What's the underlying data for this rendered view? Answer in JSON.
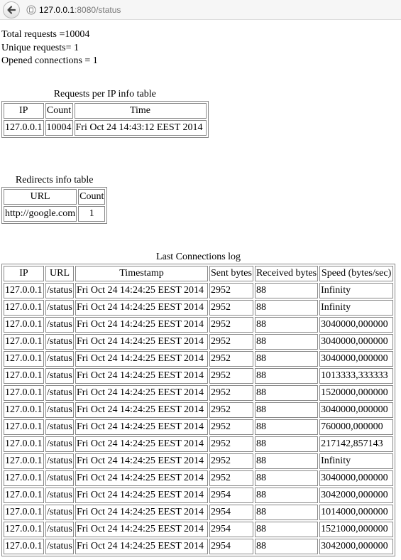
{
  "browser": {
    "url_host": "127.0.0.1",
    "url_rest": ":8080/status",
    "icons": {
      "back": "back-arrow-icon",
      "page": "page-icon"
    }
  },
  "stats": {
    "total_requests": "Total requests =10004",
    "unique_requests": "Unique requests= 1",
    "opened_connections": "Opened connections = 1"
  },
  "ip_table": {
    "caption": "Requests per IP info table",
    "headers": [
      "IP",
      "Count",
      "Time"
    ],
    "rows": [
      [
        "127.0.0.1",
        "10004",
        "Fri Oct 24 14:43:12 EEST 2014"
      ]
    ]
  },
  "redirects_table": {
    "caption": "Redirects info table",
    "headers": [
      "URL",
      "Count"
    ],
    "rows": [
      [
        "http://google.com",
        "1"
      ]
    ]
  },
  "connections_table": {
    "caption": "Last Connections log",
    "headers": [
      "IP",
      "URL",
      "Timestamp",
      "Sent bytes",
      "Received bytes",
      "Speed (bytes/sec)"
    ],
    "rows": [
      [
        "127.0.0.1",
        "/status",
        "Fri Oct 24 14:24:25 EEST 2014",
        "2952",
        "88",
        "Infinity"
      ],
      [
        "127.0.0.1",
        "/status",
        "Fri Oct 24 14:24:25 EEST 2014",
        "2952",
        "88",
        "Infinity"
      ],
      [
        "127.0.0.1",
        "/status",
        "Fri Oct 24 14:24:25 EEST 2014",
        "2952",
        "88",
        "3040000,000000"
      ],
      [
        "127.0.0.1",
        "/status",
        "Fri Oct 24 14:24:25 EEST 2014",
        "2952",
        "88",
        "3040000,000000"
      ],
      [
        "127.0.0.1",
        "/status",
        "Fri Oct 24 14:24:25 EEST 2014",
        "2952",
        "88",
        "3040000,000000"
      ],
      [
        "127.0.0.1",
        "/status",
        "Fri Oct 24 14:24:25 EEST 2014",
        "2952",
        "88",
        "1013333,333333"
      ],
      [
        "127.0.0.1",
        "/status",
        "Fri Oct 24 14:24:25 EEST 2014",
        "2952",
        "88",
        "1520000,000000"
      ],
      [
        "127.0.0.1",
        "/status",
        "Fri Oct 24 14:24:25 EEST 2014",
        "2952",
        "88",
        "3040000,000000"
      ],
      [
        "127.0.0.1",
        "/status",
        "Fri Oct 24 14:24:25 EEST 2014",
        "2952",
        "88",
        "760000,000000"
      ],
      [
        "127.0.0.1",
        "/status",
        "Fri Oct 24 14:24:25 EEST 2014",
        "2952",
        "88",
        "217142,857143"
      ],
      [
        "127.0.0.1",
        "/status",
        "Fri Oct 24 14:24:25 EEST 2014",
        "2952",
        "88",
        "Infinity"
      ],
      [
        "127.0.0.1",
        "/status",
        "Fri Oct 24 14:24:25 EEST 2014",
        "2952",
        "88",
        "3040000,000000"
      ],
      [
        "127.0.0.1",
        "/status",
        "Fri Oct 24 14:24:25 EEST 2014",
        "2954",
        "88",
        "3042000,000000"
      ],
      [
        "127.0.0.1",
        "/status",
        "Fri Oct 24 14:24:25 EEST 2014",
        "2954",
        "88",
        "1014000,000000"
      ],
      [
        "127.0.0.1",
        "/status",
        "Fri Oct 24 14:24:25 EEST 2014",
        "2954",
        "88",
        "1521000,000000"
      ],
      [
        "127.0.0.1",
        "/status",
        "Fri Oct 24 14:24:25 EEST 2014",
        "2954",
        "88",
        "3042000,000000"
      ]
    ]
  }
}
